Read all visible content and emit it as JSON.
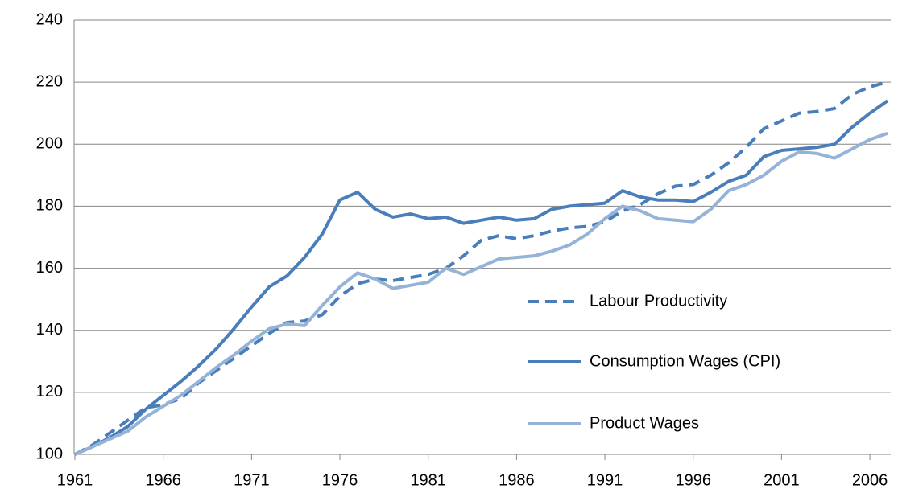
{
  "chart_data": {
    "type": "line",
    "x": [
      1961,
      1962,
      1963,
      1964,
      1965,
      1966,
      1967,
      1968,
      1969,
      1970,
      1971,
      1972,
      1973,
      1974,
      1975,
      1976,
      1977,
      1978,
      1979,
      1980,
      1981,
      1982,
      1983,
      1984,
      1985,
      1986,
      1987,
      1988,
      1989,
      1990,
      1991,
      1992,
      1993,
      1994,
      1995,
      1996,
      1997,
      1998,
      1999,
      2000,
      2001,
      2002,
      2003,
      2004,
      2005,
      2006,
      2007
    ],
    "xlim": [
      1961,
      2007
    ],
    "xticks": [
      1961,
      1966,
      1971,
      1976,
      1981,
      1986,
      1991,
      1996,
      2001,
      2006
    ],
    "ylim": [
      100,
      240
    ],
    "yticks": [
      100,
      120,
      140,
      160,
      180,
      200,
      220,
      240
    ],
    "grid": true,
    "legend": "right",
    "series": [
      {
        "name": "Labour Productivity",
        "color": "#4a7ebb",
        "style": "dashed",
        "values": [
          100,
          103,
          107,
          111,
          115,
          116,
          118,
          123,
          127,
          131,
          135,
          139,
          142.5,
          143,
          145,
          151,
          155,
          156.5,
          156,
          157,
          158,
          160,
          164,
          169,
          170.5,
          169.5,
          170.5,
          172,
          173,
          173.5,
          175,
          178.5,
          180.5,
          184,
          186.5,
          187,
          190,
          194,
          199,
          205,
          207.5,
          210,
          210.5,
          211.5,
          216,
          218.5,
          220
        ]
      },
      {
        "name": "Consumption Wages (CPI)",
        "color": "#4a7ebb",
        "style": "solid",
        "values": [
          100,
          102.5,
          105.5,
          109,
          114.5,
          119,
          123.5,
          128.5,
          134,
          140.5,
          147.5,
          154,
          157.5,
          163.5,
          171,
          182,
          184.5,
          179,
          176.5,
          177.5,
          176,
          176.5,
          174.5,
          175.5,
          176.5,
          175.5,
          176,
          179,
          180,
          180.5,
          181,
          185,
          183,
          182,
          182,
          181.5,
          184.5,
          188,
          190,
          196,
          198,
          198.5,
          199,
          200,
          205.5,
          210,
          214
        ]
      },
      {
        "name": "Product Wages",
        "color": "#95b3d7",
        "style": "solid",
        "values": [
          100,
          102.5,
          105,
          107.5,
          112,
          115.5,
          119,
          123.5,
          128,
          132,
          136.5,
          140.5,
          142,
          141.5,
          148,
          154,
          158.5,
          156.5,
          153.5,
          154.5,
          155.5,
          160,
          158,
          160.5,
          163,
          163.5,
          164,
          165.5,
          167.5,
          171,
          176,
          180,
          178.5,
          176,
          175.5,
          175,
          179,
          185,
          187,
          190,
          194.5,
          197.5,
          197,
          195.5,
          198.5,
          201.5,
          203.5
        ]
      }
    ]
  }
}
